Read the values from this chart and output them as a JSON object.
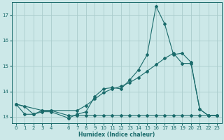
{
  "xlabel": "Humidex (Indice chaleur)",
  "bg_color": "#cce8e8",
  "grid_color": "#aacccc",
  "line_color": "#1a6b6b",
  "xlim": [
    -0.5,
    23.5
  ],
  "ylim": [
    12.75,
    17.5
  ],
  "yticks": [
    13,
    14,
    15,
    16,
    17
  ],
  "xticks": [
    0,
    1,
    2,
    3,
    4,
    6,
    7,
    8,
    9,
    10,
    11,
    12,
    13,
    14,
    15,
    16,
    17,
    18,
    19,
    20,
    21,
    22,
    23
  ],
  "series1_x": [
    0,
    1,
    2,
    3,
    4,
    6,
    7,
    8,
    9,
    10,
    11,
    12,
    13,
    14,
    15,
    16,
    17,
    18,
    19,
    20,
    21,
    22,
    23
  ],
  "series1_y": [
    13.5,
    13.4,
    13.1,
    13.2,
    13.2,
    12.95,
    13.1,
    13.2,
    13.8,
    14.1,
    14.15,
    14.1,
    14.45,
    14.85,
    15.45,
    17.35,
    16.65,
    15.45,
    15.5,
    15.15,
    13.3,
    13.05,
    13.05
  ],
  "series2_x": [
    0,
    3,
    4,
    7,
    8,
    9,
    10,
    11,
    12,
    13,
    14,
    15,
    16,
    17,
    18,
    19,
    20,
    21,
    22,
    23
  ],
  "series2_y": [
    13.5,
    13.25,
    13.25,
    13.25,
    13.45,
    13.7,
    13.95,
    14.1,
    14.2,
    14.35,
    14.55,
    14.8,
    15.05,
    15.3,
    15.5,
    15.1,
    15.1,
    13.3,
    13.05,
    13.05
  ],
  "series3_x": [
    0,
    1,
    2,
    3,
    4,
    6,
    7,
    8,
    9,
    10,
    11,
    12,
    13,
    14,
    15,
    16,
    17,
    18,
    19,
    20,
    21,
    22,
    23
  ],
  "series3_y": [
    13.5,
    13.1,
    13.1,
    13.25,
    13.25,
    13.05,
    13.05,
    13.05,
    13.05,
    13.05,
    13.05,
    13.05,
    13.05,
    13.05,
    13.05,
    13.05,
    13.05,
    13.05,
    13.05,
    13.05,
    13.05,
    13.05,
    13.05
  ]
}
